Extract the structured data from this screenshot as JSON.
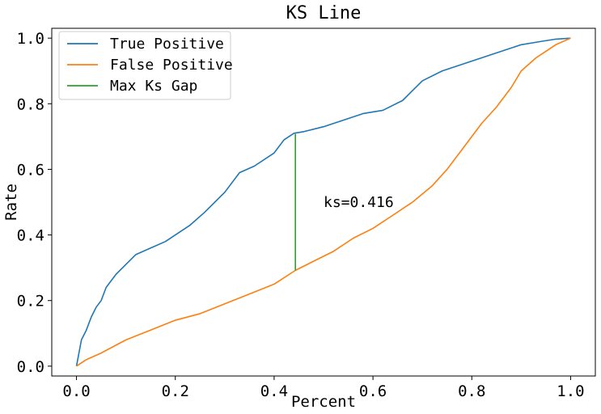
{
  "chart_data": {
    "type": "line",
    "title": "KS Line",
    "xlabel": "Percent",
    "ylabel": "Rate",
    "xlim": [
      -0.05,
      1.05
    ],
    "ylim": [
      -0.03,
      1.03
    ],
    "xticks": [
      0.0,
      0.2,
      0.4,
      0.6,
      0.8,
      1.0
    ],
    "xtick_labels": [
      "0.0",
      "0.2",
      "0.4",
      "0.6",
      "0.8",
      "1.0"
    ],
    "yticks": [
      0.0,
      0.2,
      0.4,
      0.6,
      0.8,
      1.0
    ],
    "ytick_labels": [
      "0.0",
      "0.2",
      "0.4",
      "0.6",
      "0.8",
      "1.0"
    ],
    "grid": false,
    "legend_position": "top-left",
    "series": [
      {
        "name": "True Positive",
        "color": "#1f77b4",
        "x": [
          0.0,
          0.005,
          0.01,
          0.02,
          0.03,
          0.04,
          0.05,
          0.06,
          0.08,
          0.1,
          0.12,
          0.15,
          0.18,
          0.2,
          0.23,
          0.26,
          0.3,
          0.33,
          0.36,
          0.4,
          0.42,
          0.44,
          0.46,
          0.5,
          0.54,
          0.58,
          0.62,
          0.66,
          0.7,
          0.74,
          0.78,
          0.82,
          0.86,
          0.9,
          0.94,
          0.97,
          1.0
        ],
        "y": [
          0.0,
          0.04,
          0.08,
          0.11,
          0.15,
          0.18,
          0.2,
          0.24,
          0.28,
          0.31,
          0.34,
          0.36,
          0.38,
          0.4,
          0.43,
          0.47,
          0.53,
          0.59,
          0.61,
          0.65,
          0.69,
          0.71,
          0.715,
          0.73,
          0.75,
          0.77,
          0.78,
          0.81,
          0.87,
          0.9,
          0.92,
          0.94,
          0.96,
          0.98,
          0.99,
          0.997,
          1.0
        ]
      },
      {
        "name": "False Positive",
        "color": "#ff7f0e",
        "x": [
          0.0,
          0.02,
          0.05,
          0.1,
          0.15,
          0.2,
          0.25,
          0.3,
          0.35,
          0.4,
          0.443,
          0.48,
          0.52,
          0.56,
          0.6,
          0.64,
          0.68,
          0.72,
          0.75,
          0.78,
          0.8,
          0.82,
          0.85,
          0.88,
          0.9,
          0.93,
          0.95,
          0.97,
          1.0
        ],
        "y": [
          0.0,
          0.02,
          0.04,
          0.08,
          0.11,
          0.14,
          0.16,
          0.19,
          0.22,
          0.25,
          0.292,
          0.32,
          0.35,
          0.39,
          0.42,
          0.46,
          0.5,
          0.55,
          0.6,
          0.66,
          0.7,
          0.74,
          0.79,
          0.85,
          0.9,
          0.94,
          0.96,
          0.98,
          1.0
        ]
      },
      {
        "name": "Max Ks Gap",
        "color": "#2ca02c",
        "x": [
          0.443,
          0.443
        ],
        "y": [
          0.292,
          0.708
        ]
      }
    ],
    "annotations": [
      {
        "text": "ks=0.416",
        "x": 0.5,
        "y": 0.5
      }
    ]
  }
}
